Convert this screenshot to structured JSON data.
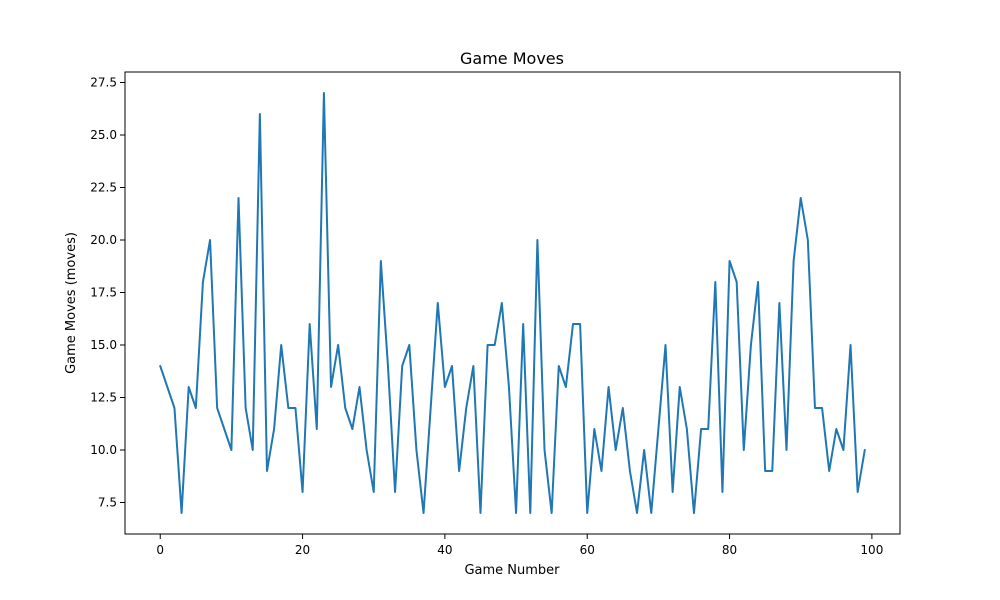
{
  "chart_data": {
    "type": "line",
    "title": "Game Moves",
    "xlabel": "Game Number",
    "ylabel": "Game Moves (moves)",
    "xlim": [
      -4.95,
      103.95
    ],
    "ylim": [
      6.0,
      28.0
    ],
    "xticks": [
      0,
      20,
      40,
      60,
      80,
      100
    ],
    "xtick_labels": [
      "0",
      "20",
      "40",
      "60",
      "80",
      "100"
    ],
    "yticks": [
      7.5,
      10.0,
      12.5,
      15.0,
      17.5,
      20.0,
      22.5,
      25.0,
      27.5
    ],
    "ytick_labels": [
      "7.5",
      "10.0",
      "12.5",
      "15.0",
      "17.5",
      "20.0",
      "22.5",
      "25.0",
      "27.5"
    ],
    "grid": false,
    "series": [
      {
        "color": "#1f77b4",
        "x": [
          0,
          1,
          2,
          3,
          4,
          5,
          6,
          7,
          8,
          9,
          10,
          11,
          12,
          13,
          14,
          15,
          16,
          17,
          18,
          19,
          20,
          21,
          22,
          23,
          24,
          25,
          26,
          27,
          28,
          29,
          30,
          31,
          32,
          33,
          34,
          35,
          36,
          37,
          38,
          39,
          40,
          41,
          42,
          43,
          44,
          45,
          46,
          47,
          48,
          49,
          50,
          51,
          52,
          53,
          54,
          55,
          56,
          57,
          58,
          59,
          60,
          61,
          62,
          63,
          64,
          65,
          66,
          67,
          68,
          69,
          70,
          71,
          72,
          73,
          74,
          75,
          76,
          77,
          78,
          79,
          80,
          81,
          82,
          83,
          84,
          85,
          86,
          87,
          88,
          89,
          90,
          91,
          92,
          93,
          94,
          95,
          96,
          97,
          98,
          99
        ],
        "values": [
          14,
          13,
          12,
          7,
          13,
          12,
          18,
          20,
          12,
          11,
          10,
          22,
          12,
          10,
          26,
          9,
          11,
          15,
          12,
          12,
          8,
          16,
          11,
          27,
          13,
          15,
          12,
          11,
          13,
          10,
          8,
          19,
          14,
          8,
          14,
          15,
          10,
          7,
          12,
          17,
          13,
          14,
          9,
          12,
          14,
          7,
          15,
          15,
          17,
          13,
          7,
          16,
          7,
          20,
          10,
          7,
          14,
          13,
          16,
          16,
          7,
          11,
          9,
          13,
          10,
          12,
          9,
          7,
          10,
          7,
          11,
          15,
          8,
          13,
          11,
          7,
          11,
          11,
          18,
          8,
          19,
          18,
          10,
          15,
          18,
          9,
          9,
          17,
          10,
          19,
          22,
          20,
          12,
          12,
          9,
          11,
          10,
          15,
          8,
          10
        ]
      }
    ]
  }
}
